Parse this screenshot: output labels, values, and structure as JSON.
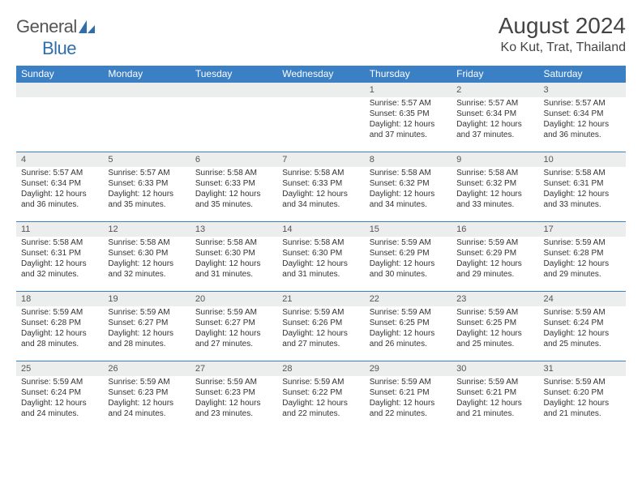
{
  "logo": {
    "text1": "General",
    "text2": "Blue"
  },
  "title": "August 2024",
  "location": "Ko Kut, Trat, Thailand",
  "colors": {
    "header_bg": "#3b7fc4",
    "row_divider": "#3b7fc4",
    "daynum_bg": "#eceded"
  },
  "weekdays": [
    "Sunday",
    "Monday",
    "Tuesday",
    "Wednesday",
    "Thursday",
    "Friday",
    "Saturday"
  ],
  "weeks": [
    [
      null,
      null,
      null,
      null,
      {
        "n": "1",
        "sr": "Sunrise: 5:57 AM",
        "ss": "Sunset: 6:35 PM",
        "dl": "Daylight: 12 hours and 37 minutes."
      },
      {
        "n": "2",
        "sr": "Sunrise: 5:57 AM",
        "ss": "Sunset: 6:34 PM",
        "dl": "Daylight: 12 hours and 37 minutes."
      },
      {
        "n": "3",
        "sr": "Sunrise: 5:57 AM",
        "ss": "Sunset: 6:34 PM",
        "dl": "Daylight: 12 hours and 36 minutes."
      }
    ],
    [
      {
        "n": "4",
        "sr": "Sunrise: 5:57 AM",
        "ss": "Sunset: 6:34 PM",
        "dl": "Daylight: 12 hours and 36 minutes."
      },
      {
        "n": "5",
        "sr": "Sunrise: 5:57 AM",
        "ss": "Sunset: 6:33 PM",
        "dl": "Daylight: 12 hours and 35 minutes."
      },
      {
        "n": "6",
        "sr": "Sunrise: 5:58 AM",
        "ss": "Sunset: 6:33 PM",
        "dl": "Daylight: 12 hours and 35 minutes."
      },
      {
        "n": "7",
        "sr": "Sunrise: 5:58 AM",
        "ss": "Sunset: 6:33 PM",
        "dl": "Daylight: 12 hours and 34 minutes."
      },
      {
        "n": "8",
        "sr": "Sunrise: 5:58 AM",
        "ss": "Sunset: 6:32 PM",
        "dl": "Daylight: 12 hours and 34 minutes."
      },
      {
        "n": "9",
        "sr": "Sunrise: 5:58 AM",
        "ss": "Sunset: 6:32 PM",
        "dl": "Daylight: 12 hours and 33 minutes."
      },
      {
        "n": "10",
        "sr": "Sunrise: 5:58 AM",
        "ss": "Sunset: 6:31 PM",
        "dl": "Daylight: 12 hours and 33 minutes."
      }
    ],
    [
      {
        "n": "11",
        "sr": "Sunrise: 5:58 AM",
        "ss": "Sunset: 6:31 PM",
        "dl": "Daylight: 12 hours and 32 minutes."
      },
      {
        "n": "12",
        "sr": "Sunrise: 5:58 AM",
        "ss": "Sunset: 6:30 PM",
        "dl": "Daylight: 12 hours and 32 minutes."
      },
      {
        "n": "13",
        "sr": "Sunrise: 5:58 AM",
        "ss": "Sunset: 6:30 PM",
        "dl": "Daylight: 12 hours and 31 minutes."
      },
      {
        "n": "14",
        "sr": "Sunrise: 5:58 AM",
        "ss": "Sunset: 6:30 PM",
        "dl": "Daylight: 12 hours and 31 minutes."
      },
      {
        "n": "15",
        "sr": "Sunrise: 5:59 AM",
        "ss": "Sunset: 6:29 PM",
        "dl": "Daylight: 12 hours and 30 minutes."
      },
      {
        "n": "16",
        "sr": "Sunrise: 5:59 AM",
        "ss": "Sunset: 6:29 PM",
        "dl": "Daylight: 12 hours and 29 minutes."
      },
      {
        "n": "17",
        "sr": "Sunrise: 5:59 AM",
        "ss": "Sunset: 6:28 PM",
        "dl": "Daylight: 12 hours and 29 minutes."
      }
    ],
    [
      {
        "n": "18",
        "sr": "Sunrise: 5:59 AM",
        "ss": "Sunset: 6:28 PM",
        "dl": "Daylight: 12 hours and 28 minutes."
      },
      {
        "n": "19",
        "sr": "Sunrise: 5:59 AM",
        "ss": "Sunset: 6:27 PM",
        "dl": "Daylight: 12 hours and 28 minutes."
      },
      {
        "n": "20",
        "sr": "Sunrise: 5:59 AM",
        "ss": "Sunset: 6:27 PM",
        "dl": "Daylight: 12 hours and 27 minutes."
      },
      {
        "n": "21",
        "sr": "Sunrise: 5:59 AM",
        "ss": "Sunset: 6:26 PM",
        "dl": "Daylight: 12 hours and 27 minutes."
      },
      {
        "n": "22",
        "sr": "Sunrise: 5:59 AM",
        "ss": "Sunset: 6:25 PM",
        "dl": "Daylight: 12 hours and 26 minutes."
      },
      {
        "n": "23",
        "sr": "Sunrise: 5:59 AM",
        "ss": "Sunset: 6:25 PM",
        "dl": "Daylight: 12 hours and 25 minutes."
      },
      {
        "n": "24",
        "sr": "Sunrise: 5:59 AM",
        "ss": "Sunset: 6:24 PM",
        "dl": "Daylight: 12 hours and 25 minutes."
      }
    ],
    [
      {
        "n": "25",
        "sr": "Sunrise: 5:59 AM",
        "ss": "Sunset: 6:24 PM",
        "dl": "Daylight: 12 hours and 24 minutes."
      },
      {
        "n": "26",
        "sr": "Sunrise: 5:59 AM",
        "ss": "Sunset: 6:23 PM",
        "dl": "Daylight: 12 hours and 24 minutes."
      },
      {
        "n": "27",
        "sr": "Sunrise: 5:59 AM",
        "ss": "Sunset: 6:23 PM",
        "dl": "Daylight: 12 hours and 23 minutes."
      },
      {
        "n": "28",
        "sr": "Sunrise: 5:59 AM",
        "ss": "Sunset: 6:22 PM",
        "dl": "Daylight: 12 hours and 22 minutes."
      },
      {
        "n": "29",
        "sr": "Sunrise: 5:59 AM",
        "ss": "Sunset: 6:21 PM",
        "dl": "Daylight: 12 hours and 22 minutes."
      },
      {
        "n": "30",
        "sr": "Sunrise: 5:59 AM",
        "ss": "Sunset: 6:21 PM",
        "dl": "Daylight: 12 hours and 21 minutes."
      },
      {
        "n": "31",
        "sr": "Sunrise: 5:59 AM",
        "ss": "Sunset: 6:20 PM",
        "dl": "Daylight: 12 hours and 21 minutes."
      }
    ]
  ]
}
